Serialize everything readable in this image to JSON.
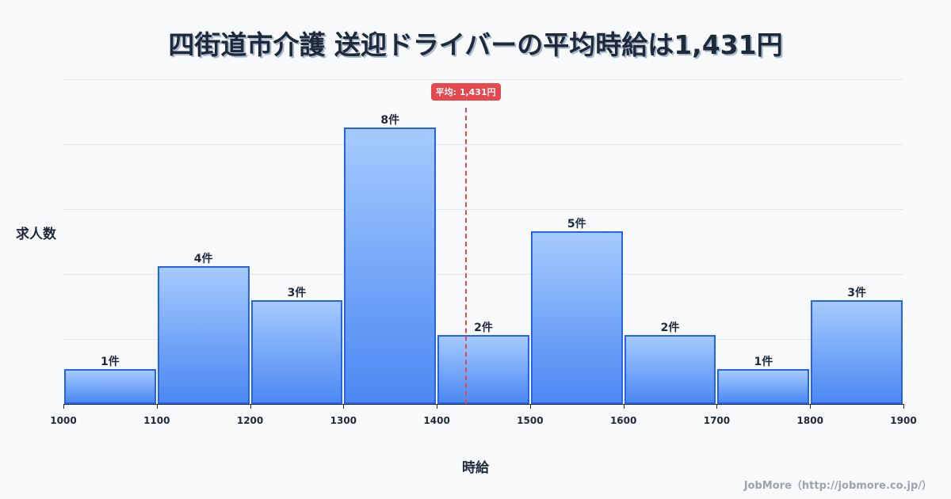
{
  "title": "四街道市介護 送迎ドライバーの平均時給は1,431円",
  "y_axis_label": "求人数",
  "x_axis_label": "時給",
  "credit": "JobMore（http://jobmore.co.jp/）",
  "mean": {
    "value": 1431,
    "label": "平均: 1,431円",
    "color": "#e5484d"
  },
  "colors": {
    "bar_border": "#2563eb",
    "bar_top": "#a5cafd",
    "bar_bottom": "#4b88f2"
  },
  "chart_data": {
    "type": "bar",
    "title": "四街道市介護 送迎ドライバーの平均時給は1,431円",
    "xlabel": "時給",
    "ylabel": "求人数",
    "bins": [
      [
        1000,
        1100
      ],
      [
        1100,
        1200
      ],
      [
        1200,
        1300
      ],
      [
        1300,
        1400
      ],
      [
        1400,
        1500
      ],
      [
        1500,
        1600
      ],
      [
        1600,
        1700
      ],
      [
        1700,
        1800
      ],
      [
        1800,
        1900
      ]
    ],
    "categories": [
      "1000-1100",
      "1100-1200",
      "1200-1300",
      "1300-1400",
      "1400-1500",
      "1500-1600",
      "1600-1700",
      "1700-1800",
      "1800-1900"
    ],
    "values": [
      1,
      4,
      3,
      8,
      2,
      5,
      2,
      1,
      3
    ],
    "value_labels": [
      "1件",
      "4件",
      "3件",
      "8件",
      "2件",
      "5件",
      "2件",
      "1件",
      "3件"
    ],
    "x_ticks": [
      "1000",
      "1100",
      "1200",
      "1300",
      "1400",
      "1500",
      "1600",
      "1700",
      "1800",
      "1900"
    ],
    "xlim": [
      1000,
      1900
    ],
    "ylim": [
      0,
      9.4
    ],
    "grid": true,
    "annotations": [
      {
        "type": "vline",
        "x": 1431,
        "label": "平均: 1,431円"
      }
    ],
    "legend": null
  }
}
